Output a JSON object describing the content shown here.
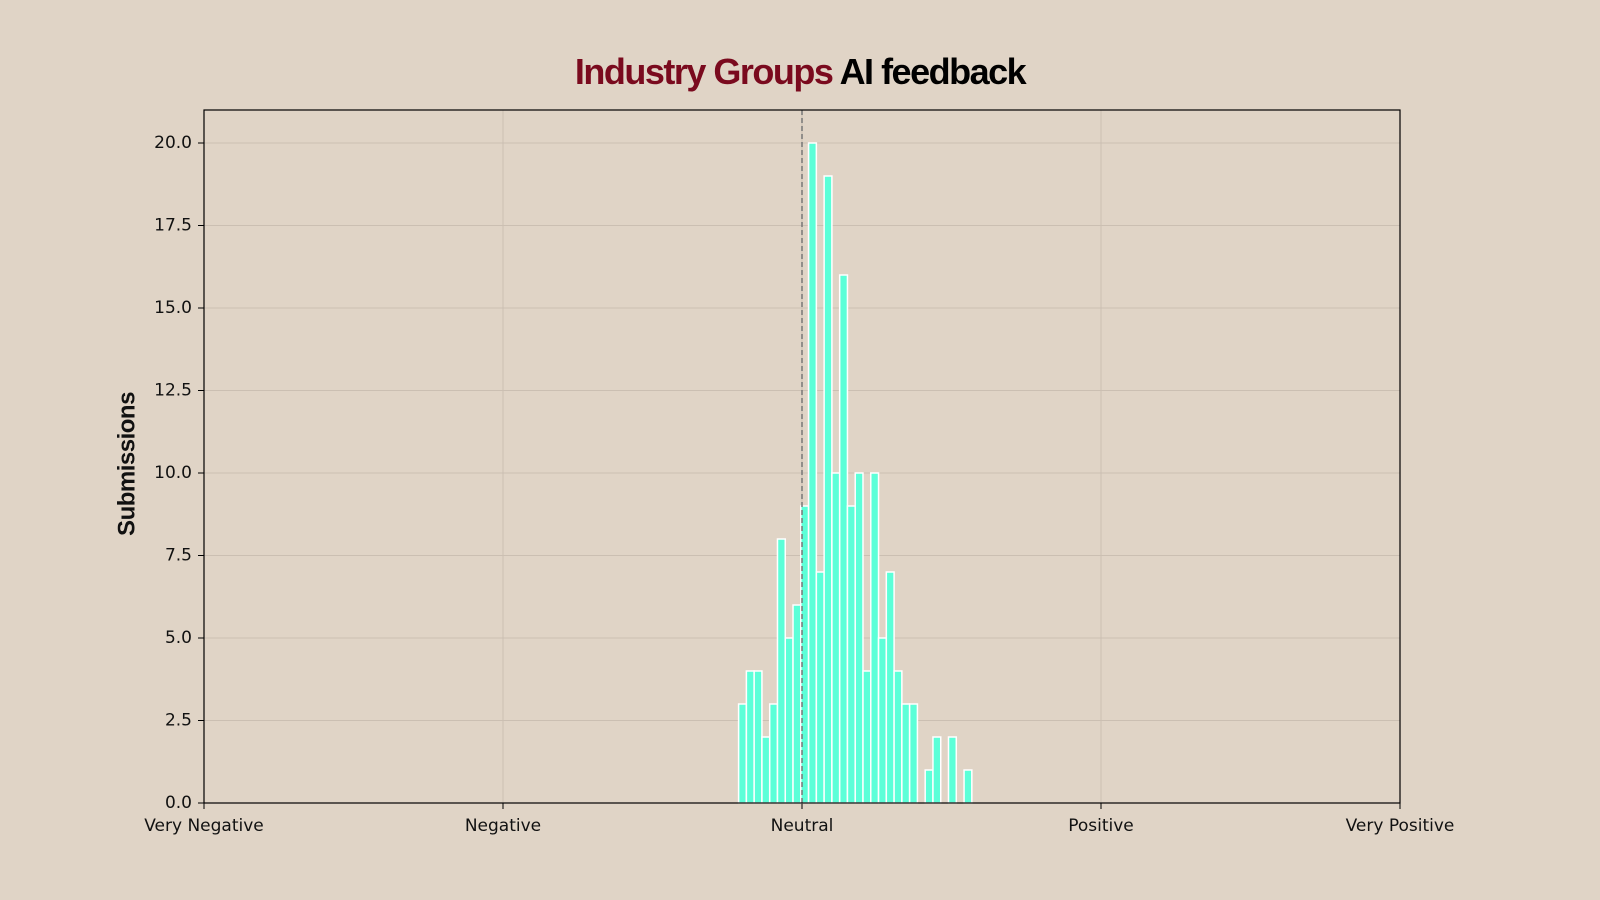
{
  "chart_data": {
    "type": "histogram",
    "title_parts": [
      {
        "text": "Industry Groups",
        "color": "#7a0a1e"
      },
      {
        "text": "AI feedback",
        "color": "#000000"
      }
    ],
    "ylabel": "Submissions",
    "ylabel_color": "#7a0a1e",
    "bins": [
      -0.106,
      -0.093,
      -0.08,
      -0.067,
      -0.054,
      -0.041,
      -0.028,
      -0.015,
      -0.002,
      0.011,
      0.024,
      0.037,
      0.05,
      0.063,
      0.076,
      0.089,
      0.102,
      0.115,
      0.128,
      0.141,
      0.154,
      0.167,
      0.18,
      0.193,
      0.206,
      0.219,
      0.232,
      0.245,
      0.258,
      0.271,
      0.284
    ],
    "values": [
      3,
      4,
      4,
      2,
      3,
      8,
      5,
      6,
      9,
      20,
      7,
      19,
      10,
      16,
      9,
      10,
      4,
      10,
      5,
      7,
      4,
      3,
      3,
      0,
      1,
      2,
      0,
      2,
      0,
      1
    ],
    "color": "#5cffd8",
    "edge_color": "#ffffff",
    "xlim": [
      -1,
      1
    ],
    "xticks": [
      {
        "value": -1,
        "label": "Very Negative"
      },
      {
        "value": -0.5,
        "label": "Negative"
      },
      {
        "value": 0,
        "label": "Neutral"
      },
      {
        "value": 0.5,
        "label": "Positive"
      },
      {
        "value": 1,
        "label": "Very Positive"
      }
    ],
    "ylim": [
      0,
      21
    ],
    "yticks": [
      {
        "value": 0,
        "label": "0.0"
      },
      {
        "value": 2.5,
        "label": "2.5"
      },
      {
        "value": 5,
        "label": "5.0"
      },
      {
        "value": 7.5,
        "label": "7.5"
      },
      {
        "value": 10,
        "label": "10.0"
      },
      {
        "value": 12.5,
        "label": "12.5"
      },
      {
        "value": 15,
        "label": "15.0"
      },
      {
        "value": 17.5,
        "label": "17.5"
      },
      {
        "value": 20,
        "label": "20.0"
      }
    ],
    "grid": true,
    "vline": 0
  }
}
